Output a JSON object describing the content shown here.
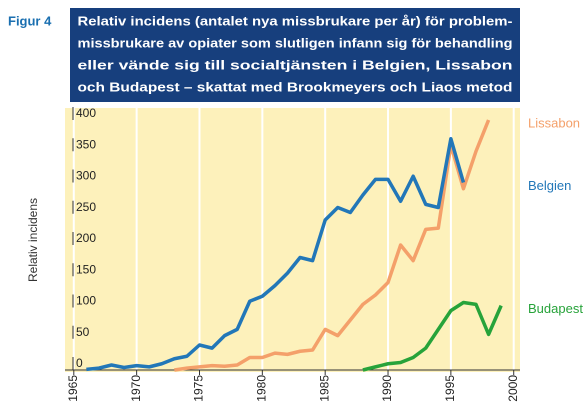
{
  "chart_data": {
    "type": "line",
    "figure_label": "Figur 4",
    "title": [
      "Relativ incidens (antalet nya missbrukare per år) för problem-",
      "missbrukare av opiater som slutligen infann sig för behandling",
      "eller vände sig till socialtjänsten i Belgien, Lissabon",
      "och Budapest – skattat med Brookmeyers och Liaos metod"
    ],
    "ylabel": "Relativ incidens",
    "xlim": [
      1964.3,
      2000.5
    ],
    "ylim": [
      0,
      400
    ],
    "xticks": [
      1965,
      1970,
      1975,
      1980,
      1985,
      1990,
      1995,
      2000
    ],
    "yticks": [
      0,
      50,
      100,
      150,
      200,
      250,
      300,
      350,
      400
    ],
    "grid": true,
    "series": [
      {
        "name": "Lissabon",
        "color": "#f4a06a",
        "x": [
          1973,
          1974,
          1975,
          1976,
          1977,
          1978,
          1979,
          1980,
          1981,
          1982,
          1983,
          1984,
          1985,
          1986,
          1987,
          1988,
          1989,
          1990,
          1991,
          1992,
          1993,
          1994,
          1995,
          1996,
          1997,
          1998
        ],
        "values": [
          0,
          3,
          5,
          7,
          6,
          8,
          20,
          20,
          27,
          25,
          30,
          32,
          65,
          55,
          80,
          105,
          120,
          140,
          200,
          175,
          225,
          227,
          360,
          290,
          350,
          400
        ]
      },
      {
        "name": "Belgien",
        "color": "#2277b8",
        "x": [
          1966,
          1967,
          1968,
          1969,
          1970,
          1971,
          1972,
          1973,
          1974,
          1975,
          1976,
          1977,
          1978,
          1979,
          1980,
          1981,
          1982,
          1983,
          1984,
          1985,
          1986,
          1987,
          1988,
          1989,
          1990,
          1991,
          1992,
          1993,
          1994,
          1995,
          1996
        ],
        "values": [
          1,
          3,
          8,
          4,
          7,
          5,
          10,
          18,
          22,
          40,
          35,
          55,
          65,
          110,
          118,
          135,
          155,
          180,
          175,
          240,
          260,
          252,
          280,
          305,
          305,
          270,
          310,
          265,
          260,
          370,
          300
        ]
      },
      {
        "name": "Budapest",
        "color": "#27a33a",
        "x": [
          1988,
          1989,
          1990,
          1991,
          1992,
          1993,
          1994,
          1995,
          1996,
          1997,
          1998,
          1999
        ],
        "values": [
          0,
          5,
          10,
          12,
          20,
          35,
          65,
          95,
          108,
          105,
          57,
          103
        ]
      }
    ]
  }
}
